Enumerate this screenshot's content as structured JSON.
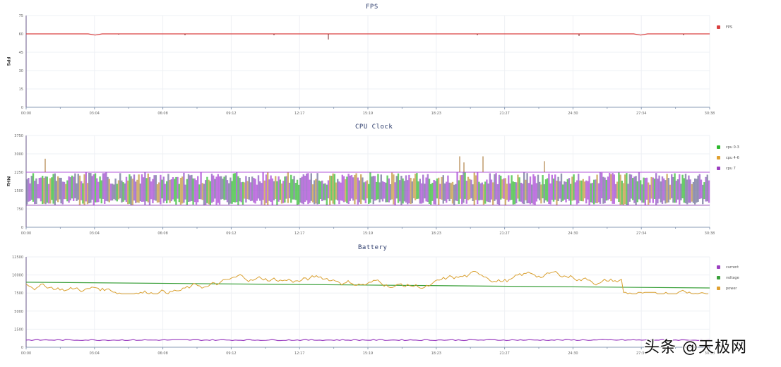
{
  "chart_data": [
    {
      "type": "line",
      "title": "FPS",
      "ylabel": "FPS",
      "xlabel": "",
      "ylim": [
        0,
        75
      ],
      "yticks": [
        0,
        15,
        30,
        45,
        60,
        75
      ],
      "xticks": [
        "00:00",
        "03:04",
        "06:08",
        "09:12",
        "12:17",
        "15:19",
        "18:23",
        "21:27",
        "24:30",
        "27:34",
        "30:38"
      ],
      "grid": true,
      "legend_position": "right",
      "series": [
        {
          "name": "FPS",
          "color": "#d94040",
          "values": [
            60,
            60,
            60,
            60,
            60,
            60,
            60,
            60,
            60,
            60,
            59,
            60,
            60,
            60,
            60,
            60,
            60,
            60,
            60,
            60,
            60,
            60,
            60,
            60,
            60,
            60,
            60,
            60,
            60,
            60,
            60,
            60,
            60,
            60,
            60,
            60,
            60,
            60,
            60,
            60,
            60,
            60,
            60,
            60,
            60,
            60,
            60,
            60,
            60,
            60,
            60,
            60,
            60,
            60,
            60,
            60,
            60,
            60,
            60,
            60,
            60,
            60,
            60,
            60,
            60,
            60,
            60,
            60,
            60,
            60,
            60,
            60,
            60,
            60,
            60,
            60,
            60,
            60,
            60,
            60,
            60,
            60,
            60,
            60,
            60,
            60,
            60,
            60,
            60,
            59,
            60,
            60,
            60,
            60,
            60,
            60,
            60,
            60,
            60,
            60
          ]
        }
      ],
      "annotations": [
        "dip to ~54 at ~13:30"
      ]
    },
    {
      "type": "line",
      "title": "CPU Clock",
      "ylabel": "MHz",
      "xlabel": "",
      "ylim": [
        0,
        3750
      ],
      "yticks": [
        0,
        750,
        1500,
        2250,
        3000,
        3750
      ],
      "xticks": [
        "00:00",
        "03:04",
        "06:08",
        "09:12",
        "12:17",
        "15:19",
        "18:23",
        "21:27",
        "24:30",
        "27:34",
        "30:38"
      ],
      "grid": true,
      "legend_position": "right",
      "series": [
        {
          "name": "cpu 0-3",
          "color": "#2db82d",
          "range": [
            900,
            2250
          ]
        },
        {
          "name": "cpu 4-6",
          "color": "#e0a030",
          "range": [
            900,
            2250
          ]
        },
        {
          "name": "cpu 7",
          "color": "#9b3fc0",
          "range": [
            900,
            2250
          ]
        }
      ],
      "annotations": [
        "spikes to ~2800 at ~00:45, ~16:10, ~17:00, ~22:30",
        "fluctuates between ~900 and ~2250 MHz throughout"
      ]
    },
    {
      "type": "line",
      "title": "Battery",
      "ylabel": "",
      "xlabel": "",
      "ylim": [
        0,
        12500
      ],
      "yticks": [
        0,
        2500,
        5000,
        7500,
        10000,
        12500
      ],
      "xticks": [
        "00:00",
        "03:04",
        "06:08",
        "09:12",
        "12:17",
        "15:19",
        "18:23",
        "21:27",
        "24:30",
        "27:34",
        "30:38"
      ],
      "grid": true,
      "legend_position": "right",
      "series": [
        {
          "name": "current",
          "color": "#9b3fc0",
          "approx": 1000
        },
        {
          "name": "voltage",
          "color": "#3aa03a",
          "start": 9000,
          "end": 8200
        },
        {
          "name": "power",
          "color": "#e0a030",
          "range": [
            7300,
            10500
          ]
        }
      ]
    }
  ],
  "watermark": "头条 @天极网"
}
